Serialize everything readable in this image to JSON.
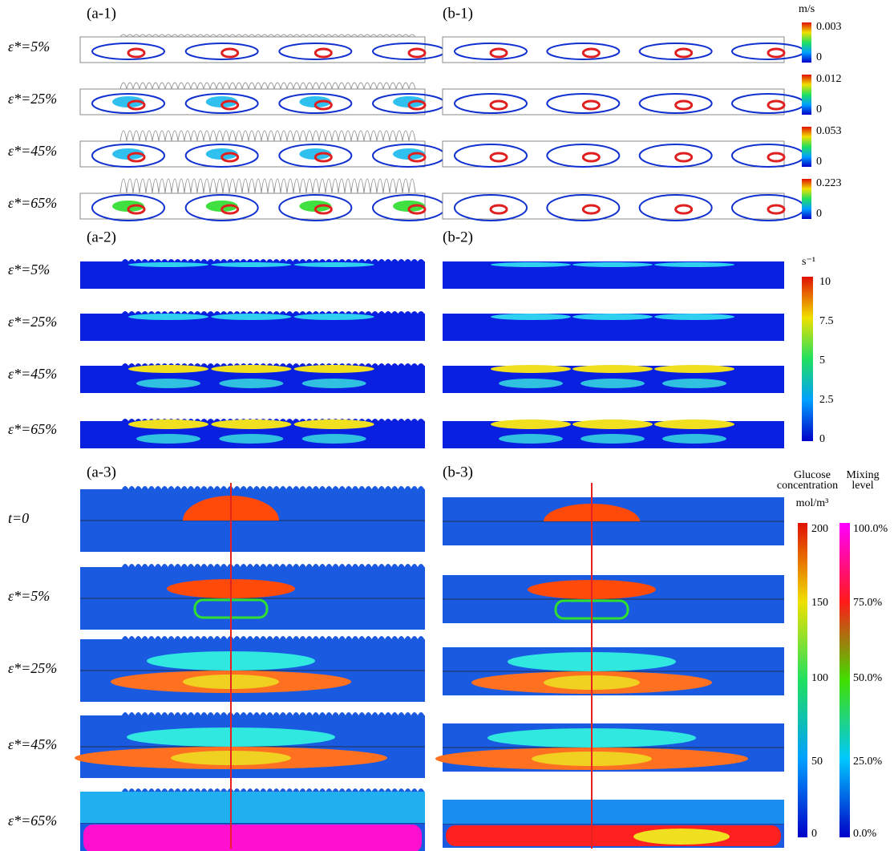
{
  "sections": [
    {
      "left_label": "(a-1)",
      "right_label": "(b-1)",
      "rows": [
        "ε*=5%",
        "ε*=25%",
        "ε*=45%",
        "ε*=65%"
      ]
    },
    {
      "left_label": "(a-2)",
      "right_label": "(b-2)",
      "rows": [
        "ε*=5%",
        "ε*=25%",
        "ε*=45%",
        "ε*=65%"
      ]
    },
    {
      "left_label": "(a-3)",
      "right_label": "(b-3)",
      "rows": [
        "t=0",
        "ε*=5%",
        "ε*=25%",
        "ε*=45%",
        "ε*=65%"
      ]
    }
  ],
  "colorbars": {
    "velocity": {
      "unit": "m/s",
      "scales": [
        [
          "0.003",
          "0"
        ],
        [
          "0.012",
          "0"
        ],
        [
          "0.053",
          "0"
        ],
        [
          "0.223",
          "0"
        ]
      ]
    },
    "shear": {
      "unit": "s⁻¹",
      "ticks": [
        "10",
        "7.5",
        "5",
        "2.5",
        "0"
      ]
    },
    "glucose": {
      "title": [
        "Glucose",
        "concentration"
      ],
      "unit": "mol/m³",
      "ticks": [
        "200",
        "150",
        "100",
        "50",
        "0"
      ]
    },
    "mixing": {
      "title": [
        "Mixing",
        "level"
      ],
      "ticks": [
        "100.0%",
        "75.0%",
        "50.0%",
        "25.0%",
        "0.0%"
      ]
    }
  }
}
